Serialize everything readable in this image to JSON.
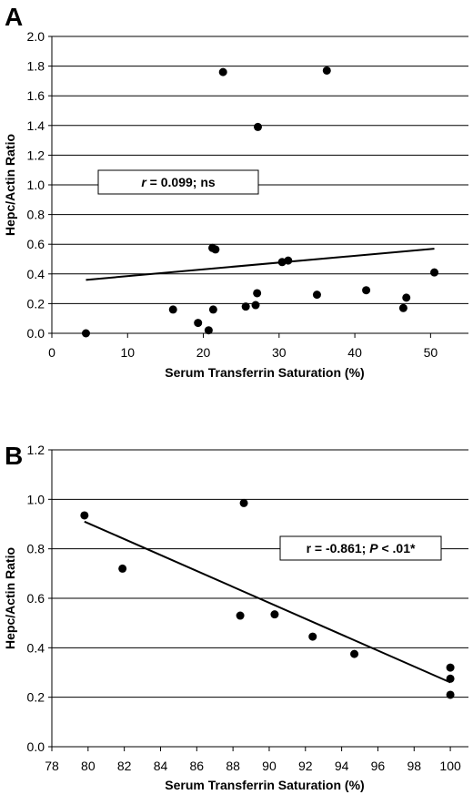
{
  "chart_data": [
    {
      "panel": "A",
      "type": "scatter",
      "xlabel": "Serum Transferrin Saturation (%)",
      "ylabel": "Hepc/Actin Ratio",
      "xlim": [
        0,
        55
      ],
      "ylim": [
        0,
        2.0
      ],
      "x_ticks": [
        "0",
        "10",
        "20",
        "30",
        "40",
        "50"
      ],
      "y_ticks": [
        "0.0",
        "0.2",
        "0.4",
        "0.6",
        "0.8",
        "1.0",
        "1.2",
        "1.4",
        "1.6",
        "1.8",
        "2.0"
      ],
      "grid": "horizontal",
      "annotation": {
        "text": "r = 0.099; ns",
        "parts": [
          [
            "r",
            true
          ],
          [
            " = 0.099; ns",
            false
          ]
        ]
      },
      "points": [
        {
          "x": 4.5,
          "y": 0.0
        },
        {
          "x": 16.0,
          "y": 0.16
        },
        {
          "x": 19.3,
          "y": 0.07
        },
        {
          "x": 20.7,
          "y": 0.02
        },
        {
          "x": 21.3,
          "y": 0.16
        },
        {
          "x": 21.2,
          "y": 0.575
        },
        {
          "x": 21.6,
          "y": 0.565
        },
        {
          "x": 22.6,
          "y": 1.76
        },
        {
          "x": 25.6,
          "y": 0.18
        },
        {
          "x": 26.9,
          "y": 0.19
        },
        {
          "x": 27.1,
          "y": 0.27
        },
        {
          "x": 27.2,
          "y": 1.39
        },
        {
          "x": 30.4,
          "y": 0.48
        },
        {
          "x": 31.2,
          "y": 0.49
        },
        {
          "x": 35.0,
          "y": 0.26
        },
        {
          "x": 36.3,
          "y": 1.77
        },
        {
          "x": 41.5,
          "y": 0.29
        },
        {
          "x": 46.4,
          "y": 0.17
        },
        {
          "x": 46.8,
          "y": 0.24
        },
        {
          "x": 50.5,
          "y": 0.41
        }
      ],
      "trendline": {
        "x1": 4.5,
        "y1": 0.36,
        "x2": 50.5,
        "y2": 0.57
      }
    },
    {
      "panel": "B",
      "type": "scatter",
      "xlabel": "Serum Transferrin Saturation (%)",
      "ylabel": "Hepc/Actin Ratio",
      "xlim": [
        78,
        101
      ],
      "ylim": [
        0,
        1.2
      ],
      "x_ticks": [
        "78",
        "80",
        "82",
        "84",
        "86",
        "88",
        "90",
        "92",
        "94",
        "96",
        "98",
        "100"
      ],
      "y_ticks": [
        "0.0",
        "0.2",
        "0.4",
        "0.6",
        "0.8",
        "1.0",
        "1.2"
      ],
      "grid": "horizontal",
      "annotation": {
        "text": "r = -0.861; P < .01*",
        "parts": [
          [
            "r = -0.861; ",
            false
          ],
          [
            "P",
            true
          ],
          [
            " < .01*",
            false
          ]
        ]
      },
      "points": [
        {
          "x": 79.8,
          "y": 0.935
        },
        {
          "x": 81.9,
          "y": 0.72
        },
        {
          "x": 88.4,
          "y": 0.53
        },
        {
          "x": 88.6,
          "y": 0.985
        },
        {
          "x": 90.3,
          "y": 0.535
        },
        {
          "x": 92.4,
          "y": 0.445
        },
        {
          "x": 94.7,
          "y": 0.375
        },
        {
          "x": 100.0,
          "y": 0.32
        },
        {
          "x": 100.0,
          "y": 0.275
        },
        {
          "x": 100.0,
          "y": 0.21
        }
      ],
      "trendline": {
        "x1": 79.8,
        "y1": 0.91,
        "x2": 100.0,
        "y2": 0.26
      }
    }
  ]
}
